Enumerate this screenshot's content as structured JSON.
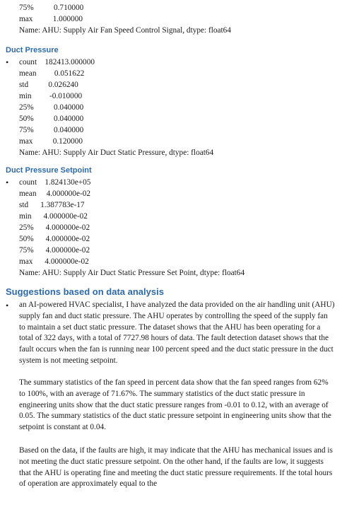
{
  "top_block": {
    "rows": [
      "75%          0.710000",
      "max          1.000000"
    ],
    "name_line": "Name: AHU: Supply Air Fan Speed Control Signal, dtype: float64"
  },
  "duct_pressure": {
    "title": "Duct Pressure",
    "bullet": "•",
    "rows": [
      "count    182413.000000",
      "mean         0.051622",
      "std          0.026240",
      "min         -0.010000",
      "25%          0.040000",
      "50%          0.040000",
      "75%          0.040000",
      "max          0.120000"
    ],
    "name_line": "Name: AHU: Supply Air Duct Static Pressure, dtype: float64"
  },
  "duct_pressure_setpoint": {
    "title": "Duct Pressure Setpoint",
    "bullet": "•",
    "rows": [
      "count    1.824130e+05",
      "mean     4.000000e-02",
      "std      1.387783e-17",
      "min      4.000000e-02",
      "25%      4.000000e-02",
      "50%      4.000000e-02",
      "75%      4.000000e-02",
      "max      4.000000e-02"
    ],
    "name_line": "Name: AHU: Supply Air Duct Static Pressure Set Point, dtype: float64"
  },
  "suggestions": {
    "title": "Suggestions based on data analysis",
    "bullet": "•",
    "paragraph_1": "an AI-powered HVAC specialist, I have analyzed the data provided on the air handling unit (AHU) supply fan and duct static pressure. The AHU operates by controlling the speed of the supply fan to maintain a set duct static pressure. The dataset shows that the AHU has been operating for a total of 322 days, with a total of 7727.98 hours of data. The fault detection dataset shows that the fault occurs when the fan is running near 100 percent speed and the duct static pressure in the duct system is not meeting setpoint.",
    "paragraph_2": "The summary statistics of the fan speed in percent data show that the fan speed ranges from 62% to 100%, with an average of 71.67%. The summary statistics of the duct static pressure in engineering units show that the duct static pressure ranges from -0.01 to 0.12, with an average of 0.05. The summary statistics of the duct static pressure setpoint in engineering units show that the setpoint is constant at 0.04.",
    "paragraph_3": "Based on the data, if the faults are high, it may indicate that the AHU has mechanical issues and is not meeting the duct static pressure setpoint. On the other hand, if the faults are low, it suggests that the AHU is operating fine and meeting the duct static pressure requirements. If the total hours of operation are approximately equal to the"
  }
}
